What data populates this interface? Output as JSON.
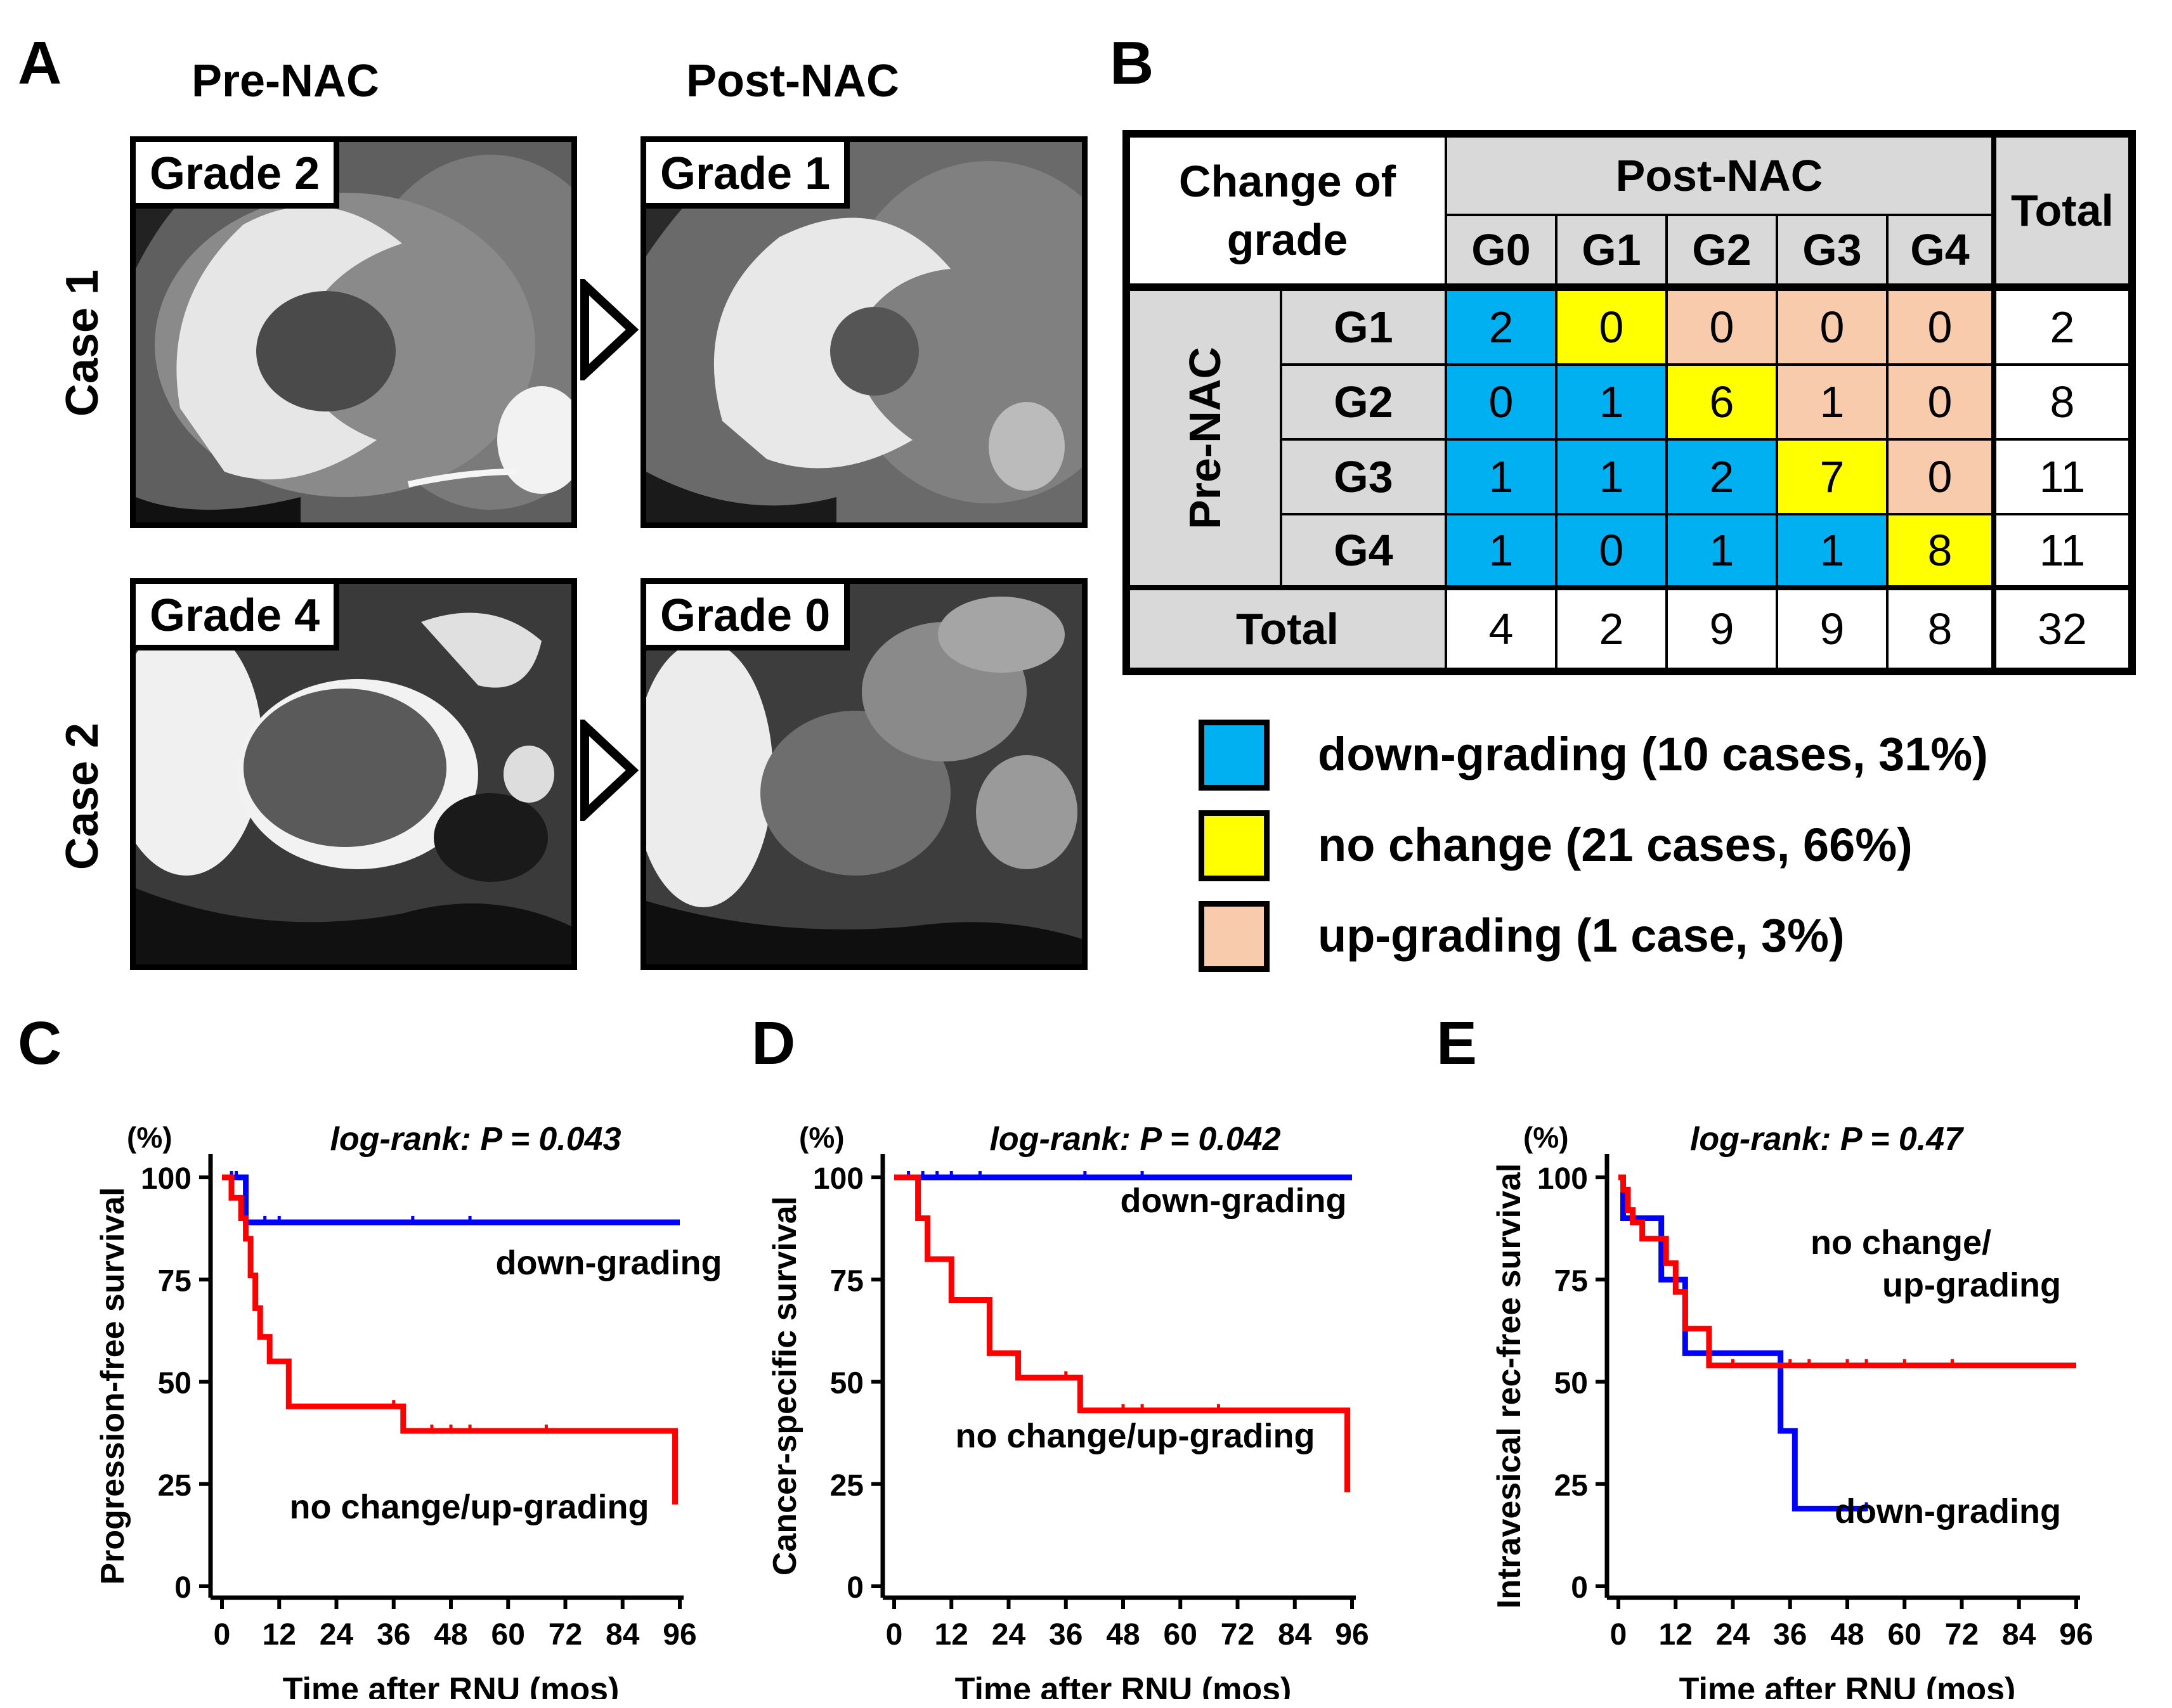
{
  "panel_a": {
    "label": "A",
    "col_pre": "Pre-NAC",
    "col_post": "Post-NAC",
    "cases": [
      {
        "name": "Case 1",
        "pre_grade": "Grade 2",
        "post_grade": "Grade 1"
      },
      {
        "name": "Case 2",
        "pre_grade": "Grade 4",
        "post_grade": "Grade 0"
      }
    ]
  },
  "panel_b": {
    "label": "B",
    "corner": "Change of grade",
    "corner_line1": "Change of",
    "corner_line2": "grade",
    "post_header": "Post-NAC",
    "total_header": "Total",
    "pre_header": "Pre-NAC",
    "post_cols": [
      "G0",
      "G1",
      "G2",
      "G3",
      "G4"
    ],
    "pre_rows": [
      "G1",
      "G2",
      "G3",
      "G4"
    ],
    "matrix": [
      [
        2,
        0,
        0,
        0,
        0
      ],
      [
        0,
        1,
        6,
        1,
        0
      ],
      [
        1,
        1,
        2,
        7,
        0
      ],
      [
        1,
        0,
        1,
        1,
        8
      ]
    ],
    "row_totals": [
      2,
      8,
      11,
      11
    ],
    "total_row_label": "Total",
    "col_totals": [
      4,
      2,
      9,
      9,
      8
    ],
    "grand_total": 32,
    "colors": {
      "down": "#00b0f0",
      "same": "#ffff00",
      "up": "#f8cbad",
      "header": "#d9d9d9"
    },
    "legend": [
      {
        "key": "down",
        "text": "down-grading (10 cases, 31%)"
      },
      {
        "key": "same",
        "text": "no change (21 cases, 66%)"
      },
      {
        "key": "up",
        "text": "up-grading (1 case, 3%)"
      }
    ]
  },
  "chart_data": [
    {
      "panel": "C",
      "type": "line",
      "step": true,
      "title": "log-rank: P = 0.043",
      "xlabel": "Time after RNU (mos)",
      "ylabel": "Progression-free survival",
      "yunit": "(%)",
      "xlim": [
        0,
        96
      ],
      "ylim": [
        0,
        100
      ],
      "xticks": [
        0,
        12,
        24,
        36,
        48,
        60,
        72,
        84,
        96
      ],
      "yticks": [
        0,
        25,
        50,
        75,
        100
      ],
      "series": [
        {
          "name": "down-grading",
          "color": "#0000ff",
          "x": [
            0,
            5,
            5,
            96
          ],
          "y": [
            100,
            100,
            89,
            89
          ],
          "censor_x": [
            2,
            3,
            9,
            12,
            40,
            52
          ]
        },
        {
          "name": "no change/up-grading",
          "color": "#ff0000",
          "x": [
            0,
            2,
            2,
            4,
            4,
            5,
            5,
            6,
            6,
            7,
            7,
            8,
            8,
            10,
            10,
            14,
            14,
            38,
            38,
            95,
            95
          ],
          "y": [
            100,
            100,
            95,
            95,
            90,
            90,
            85,
            85,
            76,
            76,
            68,
            68,
            61,
            61,
            55,
            55,
            44,
            44,
            38,
            38,
            20
          ],
          "censor_x": [
            36,
            44,
            48,
            52,
            68
          ]
        }
      ],
      "annotations": [
        "down-grading",
        "no change/up-grading"
      ]
    },
    {
      "panel": "D",
      "type": "line",
      "step": true,
      "title": "log-rank: P = 0.042",
      "xlabel": "Time after RNU (mos)",
      "ylabel": "Cancer-specific survival",
      "yunit": "(%)",
      "xlim": [
        0,
        96
      ],
      "ylim": [
        0,
        100
      ],
      "xticks": [
        0,
        12,
        24,
        36,
        48,
        60,
        72,
        84,
        96
      ],
      "yticks": [
        0,
        25,
        50,
        75,
        100
      ],
      "series": [
        {
          "name": "down-grading",
          "color": "#0000ff",
          "x": [
            0,
            96
          ],
          "y": [
            100,
            100
          ],
          "censor_x": [
            3,
            6,
            9,
            12,
            18,
            40,
            52
          ]
        },
        {
          "name": "no change/up-grading",
          "color": "#ff0000",
          "x": [
            0,
            5,
            5,
            7,
            7,
            12,
            12,
            20,
            20,
            26,
            26,
            39,
            39,
            95,
            95
          ],
          "y": [
            100,
            100,
            90,
            90,
            80,
            80,
            70,
            70,
            57,
            57,
            51,
            51,
            43,
            43,
            23
          ],
          "censor_x": [
            36,
            48,
            52,
            68
          ]
        }
      ],
      "annotations": [
        "down-grading",
        "no change/up-grading"
      ]
    },
    {
      "panel": "E",
      "type": "line",
      "step": true,
      "title": "log-rank: P = 0.47",
      "xlabel": "Time after RNU (mos)",
      "ylabel": "Intravesical rec-free survival",
      "yunit": "(%)",
      "xlim": [
        0,
        96
      ],
      "ylim": [
        0,
        100
      ],
      "xticks": [
        0,
        12,
        24,
        36,
        48,
        60,
        72,
        84,
        96
      ],
      "yticks": [
        0,
        25,
        50,
        75,
        100
      ],
      "series": [
        {
          "name": "down-grading",
          "color": "#0000ff",
          "x": [
            0,
            1,
            1,
            3,
            3,
            9,
            9,
            11,
            11,
            14,
            14,
            16,
            16,
            34,
            34,
            37,
            37,
            52
          ],
          "y": [
            100,
            100,
            90,
            90,
            90,
            90,
            75,
            75,
            75,
            75,
            57,
            57,
            57,
            57,
            38,
            38,
            19,
            19
          ],
          "censor_x": [
            52
          ]
        },
        {
          "name": "no change/up-grading",
          "color": "#ff0000",
          "x": [
            0,
            1,
            1,
            2,
            2,
            3,
            3,
            5,
            5,
            10,
            10,
            12,
            12,
            14,
            14,
            17,
            17,
            19,
            19,
            96
          ],
          "y": [
            100,
            100,
            97,
            97,
            92,
            92,
            89,
            89,
            85,
            85,
            79,
            79,
            72,
            72,
            63,
            63,
            63,
            63,
            54,
            54
          ],
          "censor_x": [
            24,
            36,
            40,
            48,
            52,
            60,
            70
          ]
        }
      ],
      "annotations": [
        "no change/",
        "up-grading",
        "down-grading"
      ]
    }
  ]
}
